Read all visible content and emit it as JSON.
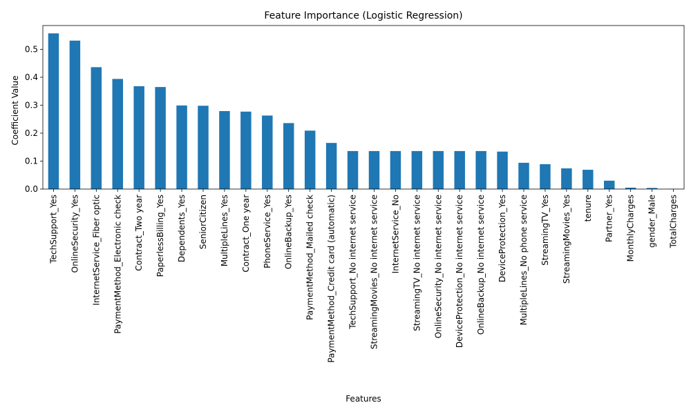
{
  "chart_data": {
    "type": "bar",
    "title": "Feature Importance (Logistic Regression)",
    "xlabel": "Features",
    "ylabel": "Coefficient Value",
    "ylim": [
      0,
      0.585
    ],
    "yticks": [
      0.0,
      0.1,
      0.2,
      0.3,
      0.4,
      0.5
    ],
    "ytick_labels": [
      "0.0",
      "0.1",
      "0.2",
      "0.3",
      "0.4",
      "0.5"
    ],
    "grid": false,
    "bar_color": "#1f77b4",
    "categories": [
      "TechSupport_Yes",
      "OnlineSecurity_Yes",
      "InternetService_Fiber optic",
      "PaymentMethod_Electronic check",
      "Contract_Two year",
      "PaperlessBilling_Yes",
      "Dependents_Yes",
      "SeniorCitizen",
      "MultipleLines_Yes",
      "Contract_One year",
      "PhoneService_Yes",
      "OnlineBackup_Yes",
      "PaymentMethod_Mailed check",
      "PaymentMethod_Credit card (automatic)",
      "TechSupport_No internet service",
      "StreamingMovies_No internet service",
      "InternetService_No",
      "StreamingTV_No internet service",
      "OnlineSecurity_No internet service",
      "DeviceProtection_No internet service",
      "OnlineBackup_No internet service",
      "DeviceProtection_Yes",
      "MultipleLines_No phone service",
      "StreamingTV_Yes",
      "StreamingMovies_Yes",
      "tenure",
      "Partner_Yes",
      "MonthlyCharges",
      "gender_Male",
      "TotalCharges"
    ],
    "values": [
      0.557,
      0.531,
      0.436,
      0.394,
      0.368,
      0.365,
      0.299,
      0.298,
      0.279,
      0.277,
      0.263,
      0.236,
      0.209,
      0.165,
      0.136,
      0.136,
      0.136,
      0.136,
      0.136,
      0.136,
      0.136,
      0.134,
      0.094,
      0.089,
      0.074,
      0.069,
      0.03,
      0.005,
      0.004,
      0.001
    ]
  }
}
